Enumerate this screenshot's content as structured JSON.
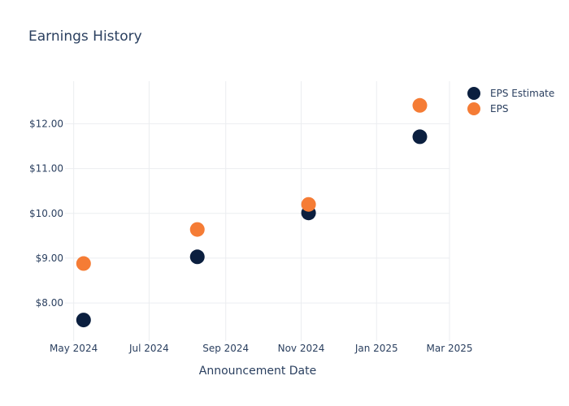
{
  "chart_data": {
    "type": "scatter",
    "title": "Earnings History",
    "xlabel": "Announcement Date",
    "ylabel": "",
    "x_ticks": [
      {
        "date": "2024-05-01",
        "label": "May 2024"
      },
      {
        "date": "2024-07-01",
        "label": "Jul 2024"
      },
      {
        "date": "2024-09-01",
        "label": "Sep 2024"
      },
      {
        "date": "2024-11-01",
        "label": "Nov 2024"
      },
      {
        "date": "2025-01-01",
        "label": "Jan 2025"
      },
      {
        "date": "2025-03-01",
        "label": "Mar 2025"
      }
    ],
    "y_ticks": [
      {
        "value": 8,
        "label": "$8.00"
      },
      {
        "value": 9,
        "label": "$9.00"
      },
      {
        "value": 10,
        "label": "$10.00"
      },
      {
        "value": 11,
        "label": "$11.00"
      },
      {
        "value": 12,
        "label": "$12.00"
      }
    ],
    "xlim": [
      "2024-04-24",
      "2025-03-01"
    ],
    "ylim": [
      7.15,
      12.95
    ],
    "grid": true,
    "legend_position": "top-right",
    "series": [
      {
        "name": "EPS Estimate",
        "color": "#0b1f3f",
        "points": [
          {
            "x": "2024-05-09",
            "y": 7.62
          },
          {
            "x": "2024-08-09",
            "y": 9.03
          },
          {
            "x": "2024-11-07",
            "y": 10.01
          },
          {
            "x": "2025-02-05",
            "y": 11.71
          }
        ]
      },
      {
        "name": "EPS",
        "color": "#f57c35",
        "points": [
          {
            "x": "2024-05-09",
            "y": 8.88
          },
          {
            "x": "2024-08-09",
            "y": 9.64
          },
          {
            "x": "2024-11-07",
            "y": 10.2
          },
          {
            "x": "2025-02-05",
            "y": 12.41
          }
        ]
      }
    ]
  }
}
